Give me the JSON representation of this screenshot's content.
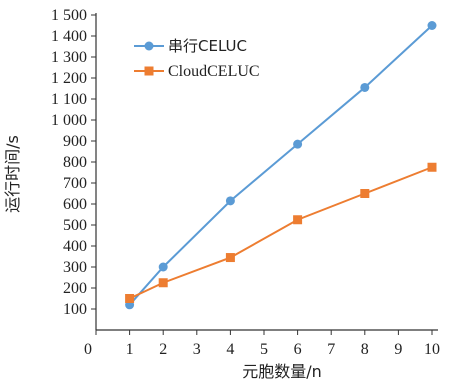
{
  "chart_data": {
    "type": "line",
    "xlabel": "元胞数量/n",
    "ylabel": "运行时间/s",
    "x_ticks": [
      "0",
      "1",
      "2",
      "3",
      "4",
      "5",
      "6",
      "7",
      "8",
      "9",
      "10"
    ],
    "y_ticks": [
      "100",
      "200",
      "300",
      "400",
      "500",
      "600",
      "700",
      "800",
      "900",
      "1 000",
      "1 100",
      "1 200",
      "1 300",
      "1 400",
      "1 500"
    ],
    "xlim": [
      0,
      10
    ],
    "ylim": [
      0,
      1500
    ],
    "grid": false,
    "legend_position": "top-left",
    "series": [
      {
        "name": "串行CELUC",
        "color": "#5b9bd5",
        "marker": "circle",
        "x": [
          1,
          2,
          4,
          6,
          8,
          10
        ],
        "y": [
          120,
          300,
          615,
          885,
          1155,
          1450
        ]
      },
      {
        "name": "CloudCELUC",
        "color": "#ed7d31",
        "marker": "square",
        "x": [
          1,
          2,
          4,
          6,
          8,
          10
        ],
        "y": [
          150,
          225,
          345,
          525,
          650,
          775
        ]
      }
    ]
  }
}
